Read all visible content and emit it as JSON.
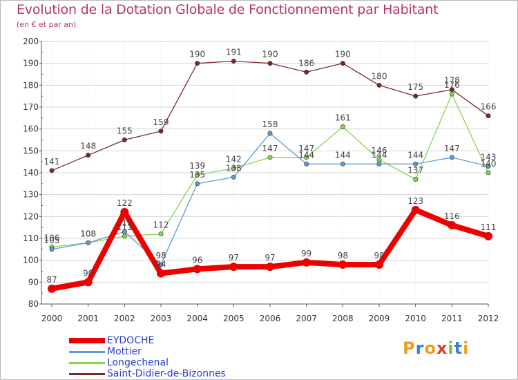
{
  "chart_data": {
    "type": "line",
    "title": "Evolution de la Dotation Globale de Fonctionnement par Habitant",
    "subtitle": "(en € et par an)",
    "xlabel": "",
    "ylabel": "",
    "ylim": [
      80,
      200
    ],
    "yticks": [
      "80",
      "90",
      "100",
      "110",
      "120",
      "130",
      "140",
      "150",
      "160",
      "170",
      "180",
      "190",
      "200"
    ],
    "categories": [
      "2000",
      "2001",
      "2002",
      "2003",
      "2004",
      "2005",
      "2006",
      "2007",
      "2008",
      "2009",
      "2010",
      "2011",
      "2012"
    ],
    "grid": true,
    "legend_position": "bottom-left",
    "series": [
      {
        "name": "Saint-Didier-de-Bizonnes",
        "color": "#7a2a2a",
        "values": [
          141,
          148,
          155,
          159,
          190,
          191,
          190,
          186,
          190,
          180,
          175,
          178,
          166
        ],
        "labels": [
          "141",
          "148",
          "155",
          "159",
          "190",
          "191",
          "190",
          "186",
          "190",
          "180",
          "175",
          "178",
          "166"
        ]
      },
      {
        "name": "Longechenal",
        "color": "#88d34e",
        "values": [
          106,
          108,
          111,
          112,
          139,
          142,
          147,
          147,
          161,
          146,
          137,
          176,
          140
        ],
        "labels": [
          "106",
          "108",
          "111",
          "112",
          "139",
          "142",
          "147",
          "147",
          "161",
          "146",
          "137",
          "176",
          "140"
        ]
      },
      {
        "name": "Mottier",
        "color": "#5b9bd0",
        "values": [
          105,
          108,
          113,
          98,
          135,
          138,
          158,
          144,
          144,
          144,
          144,
          147,
          143
        ],
        "labels": [
          "105",
          "108",
          "113",
          "98",
          "135",
          "138",
          "158",
          "144",
          "144",
          "144",
          "144",
          "147",
          "143"
        ]
      },
      {
        "name": "EYDOCHE",
        "color": "#ee0000",
        "values": [
          87,
          90,
          122,
          94,
          96,
          97,
          97,
          99,
          98,
          98,
          123,
          116,
          111
        ],
        "labels": [
          "87",
          "90",
          "122",
          "94",
          "96",
          "97",
          "97",
          "99",
          "98",
          "98",
          "123",
          "116",
          "111"
        ]
      }
    ]
  },
  "legend": [
    {
      "label": "EYDOCHE",
      "color": "#ee0000"
    },
    {
      "label": "Mottier",
      "color": "#5b9bd0"
    },
    {
      "label": "Longechenal",
      "color": "#88d34e"
    },
    {
      "label": "Saint-Didier-de-Bizonnes",
      "color": "#7a2a2a"
    }
  ],
  "legend_label_color": "#2a3fd0",
  "logo": {
    "text": "Proxiti",
    "letters": [
      "P",
      "r",
      "o",
      "x",
      "i",
      "t",
      "i"
    ],
    "colors": [
      "#f29b1d",
      "#3b7fd1",
      "#f29b1d",
      "#e23b2e",
      "#7ac143",
      "#3b7fd1",
      "#f29b1d"
    ]
  }
}
